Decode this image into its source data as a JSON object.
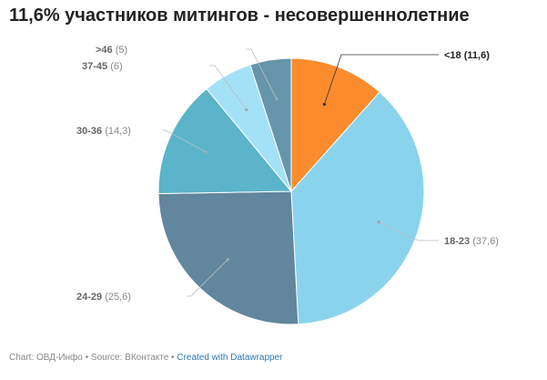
{
  "title": "11,6% участников митингов - несовершеннолетние",
  "chart_data": {
    "type": "pie",
    "title": "11,6% участников митингов - несовершеннолетние",
    "slices": [
      {
        "label": "<18",
        "value": 11.6,
        "display": "(11,6)",
        "color": "#fc8c2e"
      },
      {
        "label": "18-23",
        "value": 37.6,
        "display": "(37,6)",
        "color": "#89d4ec"
      },
      {
        "label": "24-29",
        "value": 25.6,
        "display": "(25,6)",
        "color": "#61869e"
      },
      {
        "label": "30-36",
        "value": 14.3,
        "display": "(14,3)",
        "color": "#5bb4c9"
      },
      {
        "label": "37-45",
        "value": 6,
        "display": "(6)",
        "color": "#a3e2f6"
      },
      {
        "label": ">46",
        "value": 5,
        "display": "(5)",
        "color": "#6695ab"
      }
    ]
  },
  "footer": {
    "chart_credit": "Chart: ОВД-Инфо",
    "separator": " • ",
    "source": "Source: ВКонтакте",
    "created_with": "Created with Datawrapper"
  }
}
